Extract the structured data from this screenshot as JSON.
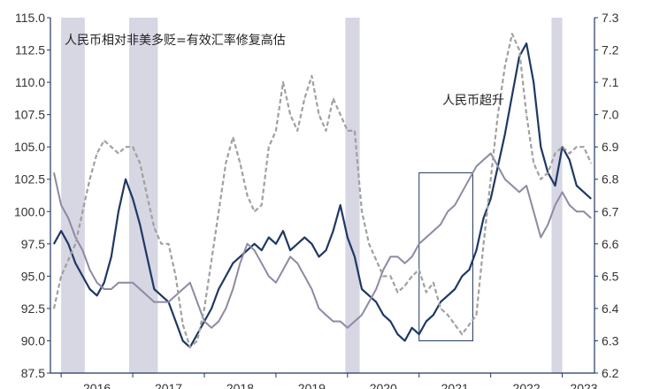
{
  "chart_data": {
    "type": "line",
    "title": "",
    "annotations": [
      "人民币相对非美多贬=有效汇率修复高估",
      "人民币超升"
    ],
    "x_labels": [
      "2016",
      "2017",
      "2018",
      "2019",
      "2020",
      "2021",
      "2022",
      "2023"
    ],
    "left_axis": {
      "min": 87.5,
      "max": 115.0,
      "ticks": [
        "87.5",
        "90.0",
        "92.5",
        "95.0",
        "97.5",
        "100.0",
        "102.5",
        "105.0",
        "107.5",
        "110.0",
        "112.5",
        "115.0"
      ]
    },
    "right_axis": {
      "min": 6.2,
      "max": 7.3,
      "ticks": [
        "6.2",
        "6.3",
        "6.4",
        "6.5",
        "6.6",
        "6.7",
        "6.8",
        "6.9",
        "7.0",
        "7.1",
        "7.2",
        "7.3"
      ]
    },
    "shaded_periods": [
      [
        2016.0,
        2016.33
      ],
      [
        2016.95,
        2017.35
      ],
      [
        2019.97,
        2020.17
      ],
      [
        2022.85,
        2023.0
      ]
    ],
    "highlight_box": {
      "x": [
        2021.0,
        2021.75
      ],
      "y": [
        90.0,
        103.0
      ]
    },
    "colors": {
      "navy": "#1f3864",
      "gray": "#8d8aa3",
      "dashed": "#a0a0a0",
      "shade": "#d7d6e3"
    },
    "series": [
      {
        "axis": "left",
        "style": "solid",
        "color": "#1f3864",
        "x": [
          2015.9,
          2016.0,
          2016.1,
          2016.2,
          2016.3,
          2016.4,
          2016.5,
          2016.6,
          2016.7,
          2016.8,
          2016.9,
          2017.0,
          2017.1,
          2017.2,
          2017.3,
          2017.4,
          2017.5,
          2017.6,
          2017.7,
          2017.8,
          2017.9,
          2018.0,
          2018.1,
          2018.2,
          2018.3,
          2018.4,
          2018.5,
          2018.6,
          2018.7,
          2018.8,
          2018.9,
          2019.0,
          2019.1,
          2019.2,
          2019.3,
          2019.4,
          2019.5,
          2019.6,
          2019.7,
          2019.8,
          2019.9,
          2020.0,
          2020.1,
          2020.2,
          2020.3,
          2020.4,
          2020.5,
          2020.6,
          2020.7,
          2020.8,
          2020.9,
          2021.0,
          2021.1,
          2021.2,
          2021.3,
          2021.4,
          2021.5,
          2021.6,
          2021.7,
          2021.8,
          2021.9,
          2022.0,
          2022.1,
          2022.2,
          2022.3,
          2022.4,
          2022.5,
          2022.6,
          2022.7,
          2022.8,
          2022.9,
          2023.0,
          2023.1,
          2023.2,
          2023.3,
          2023.4
        ],
        "values": [
          97.5,
          98.5,
          97.5,
          96.0,
          95.0,
          94.0,
          93.5,
          94.5,
          96.5,
          100.0,
          102.5,
          101.0,
          99.0,
          96.5,
          94.0,
          93.5,
          93.0,
          91.5,
          90.0,
          89.5,
          90.5,
          91.5,
          92.5,
          94.0,
          95.0,
          96.0,
          96.5,
          97.0,
          97.5,
          97.0,
          98.0,
          97.5,
          98.5,
          97.0,
          97.5,
          98.0,
          97.5,
          96.5,
          97.0,
          98.5,
          100.5,
          98.0,
          96.5,
          94.0,
          93.5,
          93.0,
          92.0,
          91.5,
          90.5,
          90.0,
          91.0,
          90.5,
          91.5,
          92.0,
          93.0,
          93.5,
          94.0,
          95.0,
          95.5,
          97.0,
          99.5,
          101.0,
          103.5,
          106.0,
          109.0,
          112.0,
          113.0,
          110.0,
          105.0,
          103.0,
          102.0,
          105.0,
          104.0,
          102.0,
          101.5,
          101.0
        ]
      },
      {
        "axis": "left",
        "style": "solid",
        "color": "#8d8aa3",
        "x": [
          2015.9,
          2016.0,
          2016.1,
          2016.2,
          2016.3,
          2016.4,
          2016.5,
          2016.6,
          2016.7,
          2016.8,
          2016.9,
          2017.0,
          2017.1,
          2017.2,
          2017.3,
          2017.4,
          2017.5,
          2017.6,
          2017.7,
          2017.8,
          2017.9,
          2018.0,
          2018.1,
          2018.2,
          2018.3,
          2018.4,
          2018.5,
          2018.6,
          2018.7,
          2018.8,
          2018.9,
          2019.0,
          2019.1,
          2019.2,
          2019.3,
          2019.4,
          2019.5,
          2019.6,
          2019.7,
          2019.8,
          2019.9,
          2020.0,
          2020.1,
          2020.2,
          2020.3,
          2020.4,
          2020.5,
          2020.6,
          2020.7,
          2020.8,
          2020.9,
          2021.0,
          2021.1,
          2021.2,
          2021.3,
          2021.4,
          2021.5,
          2021.6,
          2021.7,
          2021.8,
          2021.9,
          2022.0,
          2022.1,
          2022.2,
          2022.3,
          2022.4,
          2022.5,
          2022.6,
          2022.7,
          2022.8,
          2022.9,
          2023.0,
          2023.1,
          2023.2,
          2023.3,
          2023.4
        ],
        "values": [
          103.0,
          100.5,
          99.5,
          98.0,
          97.0,
          95.5,
          94.5,
          94.0,
          94.0,
          94.5,
          94.5,
          94.5,
          94.0,
          93.5,
          93.0,
          93.0,
          93.0,
          93.5,
          94.0,
          94.5,
          93.0,
          91.5,
          91.0,
          91.5,
          92.5,
          94.0,
          96.0,
          97.5,
          97.0,
          96.0,
          95.0,
          94.5,
          95.5,
          96.5,
          96.0,
          95.0,
          94.0,
          92.5,
          92.0,
          91.5,
          91.5,
          91.0,
          91.5,
          92.0,
          93.0,
          94.0,
          95.5,
          96.5,
          96.5,
          96.0,
          96.5,
          97.5,
          98.0,
          98.5,
          99.0,
          100.0,
          100.5,
          101.5,
          102.5,
          103.5,
          104.0,
          104.5,
          103.5,
          102.5,
          102.0,
          101.5,
          102.0,
          100.0,
          98.0,
          99.0,
          100.5,
          101.5,
          100.5,
          100.0,
          100.0,
          99.5
        ]
      },
      {
        "axis": "right",
        "style": "dashed",
        "color": "#a0a0a0",
        "x": [
          2015.9,
          2016.0,
          2016.1,
          2016.2,
          2016.3,
          2016.4,
          2016.5,
          2016.6,
          2016.7,
          2016.8,
          2016.9,
          2017.0,
          2017.1,
          2017.2,
          2017.3,
          2017.4,
          2017.5,
          2017.6,
          2017.7,
          2017.8,
          2017.9,
          2018.0,
          2018.1,
          2018.2,
          2018.3,
          2018.4,
          2018.5,
          2018.6,
          2018.7,
          2018.8,
          2018.9,
          2019.0,
          2019.1,
          2019.2,
          2019.3,
          2019.4,
          2019.5,
          2019.6,
          2019.7,
          2019.8,
          2019.9,
          2020.0,
          2020.1,
          2020.2,
          2020.3,
          2020.4,
          2020.5,
          2020.6,
          2020.7,
          2020.8,
          2020.9,
          2021.0,
          2021.1,
          2021.2,
          2021.3,
          2021.4,
          2021.5,
          2021.6,
          2021.7,
          2021.8,
          2021.9,
          2022.0,
          2022.1,
          2022.2,
          2022.3,
          2022.4,
          2022.5,
          2022.6,
          2022.7,
          2022.8,
          2022.9,
          2023.0,
          2023.1,
          2023.2,
          2023.3,
          2023.4
        ],
        "values": [
          6.4,
          6.5,
          6.55,
          6.6,
          6.7,
          6.8,
          6.88,
          6.92,
          6.9,
          6.88,
          6.9,
          6.9,
          6.85,
          6.75,
          6.65,
          6.6,
          6.6,
          6.5,
          6.35,
          6.28,
          6.3,
          6.4,
          6.55,
          6.7,
          6.85,
          6.93,
          6.85,
          6.75,
          6.7,
          6.72,
          6.9,
          6.95,
          7.1,
          7.0,
          6.95,
          7.05,
          7.12,
          7.0,
          6.95,
          7.05,
          7.0,
          6.95,
          6.95,
          6.7,
          6.6,
          6.55,
          6.5,
          6.5,
          6.45,
          6.47,
          6.5,
          6.52,
          6.45,
          6.48,
          6.4,
          6.38,
          6.35,
          6.32,
          6.35,
          6.38,
          6.6,
          6.8,
          7.0,
          7.15,
          7.25,
          7.2,
          7.0,
          6.85,
          6.8,
          6.82,
          6.88,
          6.9,
          6.88,
          6.9,
          6.9,
          6.85
        ]
      }
    ]
  }
}
